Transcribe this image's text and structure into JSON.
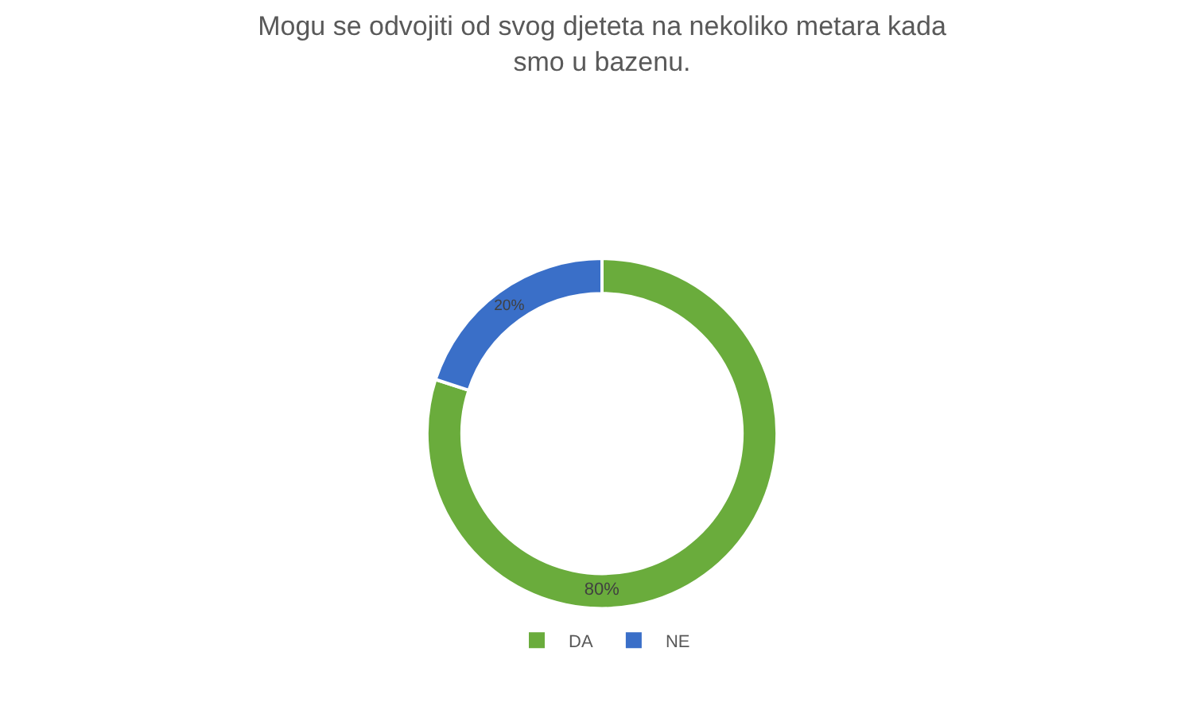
{
  "chart_data": {
    "type": "donut",
    "title": "Mogu se odvojiti od svog djeteta na nekoliko metara kada\nsmo u bazenu.",
    "categories": [
      "DA",
      "NE"
    ],
    "values": [
      80,
      20
    ],
    "colors": [
      "#6aac3c",
      "#3a6fc8"
    ],
    "value_labels": [
      "80%",
      "20%"
    ],
    "legend": "bottom"
  }
}
